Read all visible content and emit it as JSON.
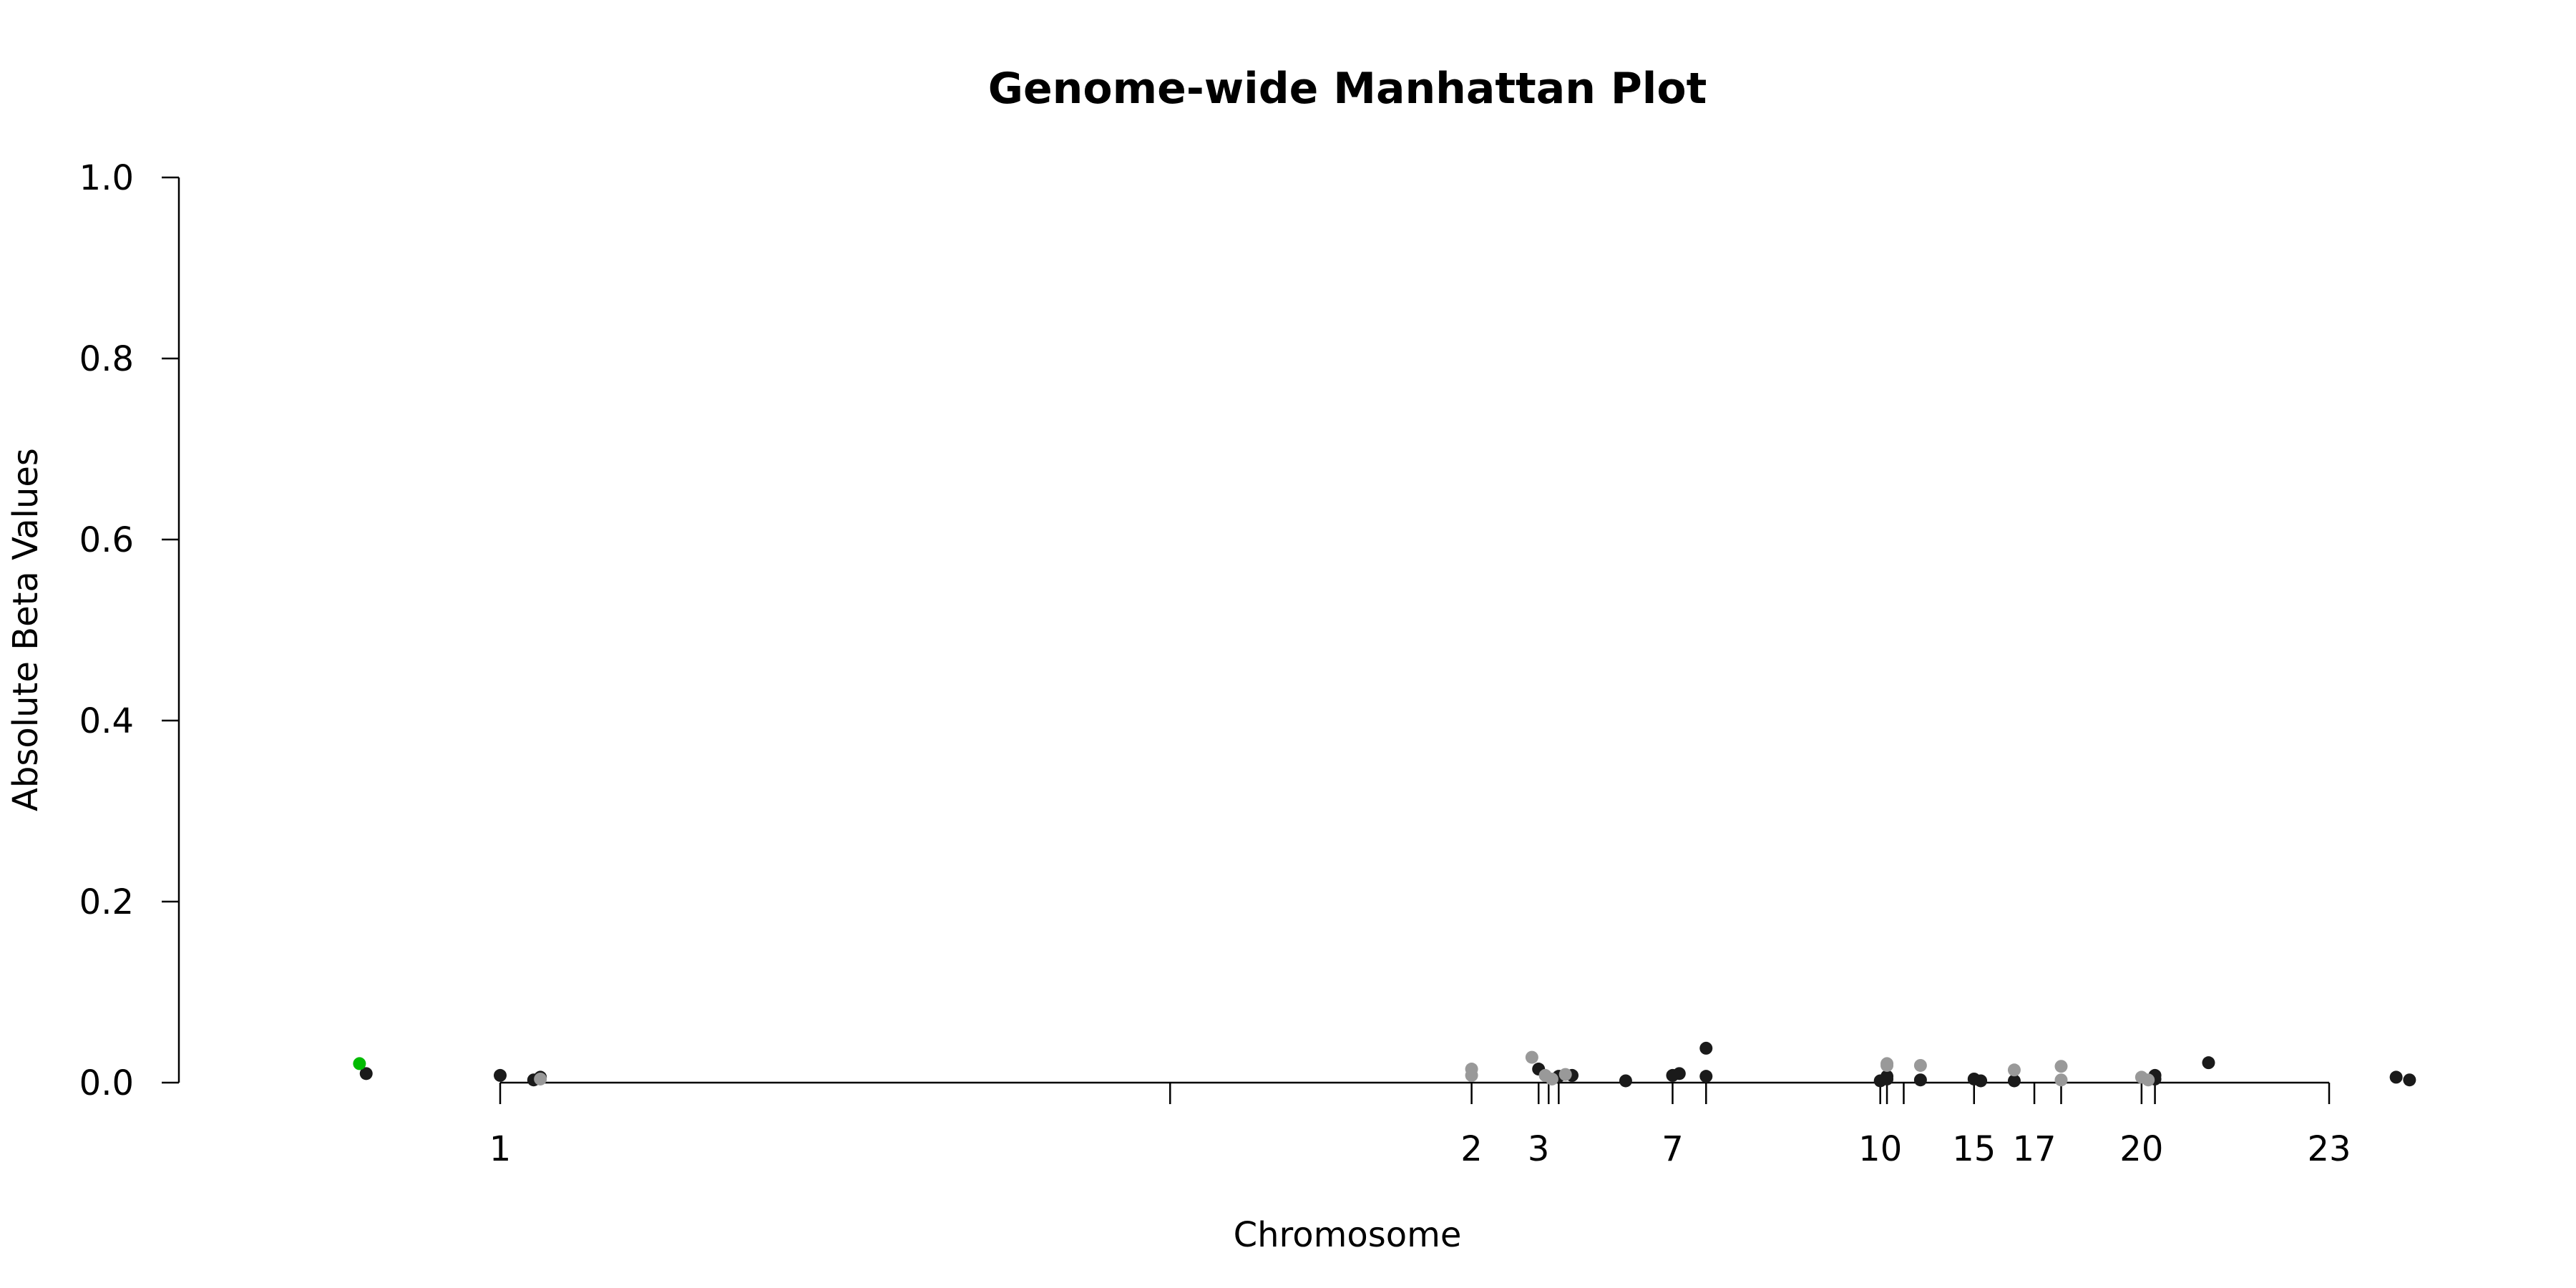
{
  "chart_data": {
    "type": "scatter",
    "title": "Genome-wide Manhattan Plot",
    "xlabel": "Chromosome",
    "ylabel": "Absolute Beta Values",
    "ylim": [
      0,
      1
    ],
    "y_ticks": [
      "0.0",
      "0.2",
      "0.4",
      "0.6",
      "0.8",
      "1.0"
    ],
    "x_ticks": [
      {
        "label": "1",
        "x": 1
      },
      {
        "label": "",
        "x": 2.0
      },
      {
        "label": "2",
        "x": 2.45
      },
      {
        "label": "3",
        "x": 2.55
      },
      {
        "label": "",
        "x": 2.565
      },
      {
        "label": "",
        "x": 2.58
      },
      {
        "label": "7",
        "x": 2.75
      },
      {
        "label": "",
        "x": 2.8
      },
      {
        "label": "10",
        "x": 3.06
      },
      {
        "label": "",
        "x": 3.07
      },
      {
        "label": "",
        "x": 3.095
      },
      {
        "label": "15",
        "x": 3.2
      },
      {
        "label": "17",
        "x": 3.29
      },
      {
        "label": "",
        "x": 3.33
      },
      {
        "label": "20",
        "x": 3.45
      },
      {
        "label": "",
        "x": 3.47
      },
      {
        "label": "23",
        "x": 3.73
      }
    ],
    "grid": false,
    "legend": "none",
    "colors": {
      "dark": "#1a1a1a",
      "light": "#999999",
      "highlight": "#00bb00"
    },
    "series": [
      {
        "color": "#1a1a1a",
        "points": [
          [
            0.8,
            0.01
          ],
          [
            1.0,
            0.008
          ],
          [
            1.05,
            0.003
          ],
          [
            1.06,
            0.006
          ],
          [
            2.55,
            0.015
          ],
          [
            2.58,
            0.007
          ],
          [
            2.6,
            0.008
          ],
          [
            2.68,
            0.002
          ],
          [
            2.75,
            0.008
          ],
          [
            2.76,
            0.01
          ],
          [
            2.8,
            0.038
          ],
          [
            2.8,
            0.007
          ],
          [
            3.06,
            0.002
          ],
          [
            3.07,
            0.004
          ],
          [
            3.07,
            0.007
          ],
          [
            3.12,
            0.003
          ],
          [
            3.2,
            0.004
          ],
          [
            3.21,
            0.002
          ],
          [
            3.26,
            0.002
          ],
          [
            3.47,
            0.008
          ],
          [
            3.47,
            0.004
          ],
          [
            3.55,
            0.022
          ],
          [
            3.83,
            0.006
          ],
          [
            3.85,
            0.003
          ]
        ]
      },
      {
        "color": "#999999",
        "points": [
          [
            1.06,
            0.004
          ],
          [
            2.45,
            0.015
          ],
          [
            2.45,
            0.008
          ],
          [
            2.54,
            0.028
          ],
          [
            2.56,
            0.008
          ],
          [
            2.57,
            0.004
          ],
          [
            2.59,
            0.009
          ],
          [
            3.07,
            0.021
          ],
          [
            3.07,
            0.019
          ],
          [
            3.12,
            0.019
          ],
          [
            3.26,
            0.014
          ],
          [
            3.33,
            0.018
          ],
          [
            3.33,
            0.003
          ],
          [
            3.45,
            0.006
          ],
          [
            3.46,
            0.003
          ]
        ]
      },
      {
        "color": "#00bb00",
        "points": [
          [
            0.79,
            0.021
          ]
        ]
      }
    ]
  }
}
